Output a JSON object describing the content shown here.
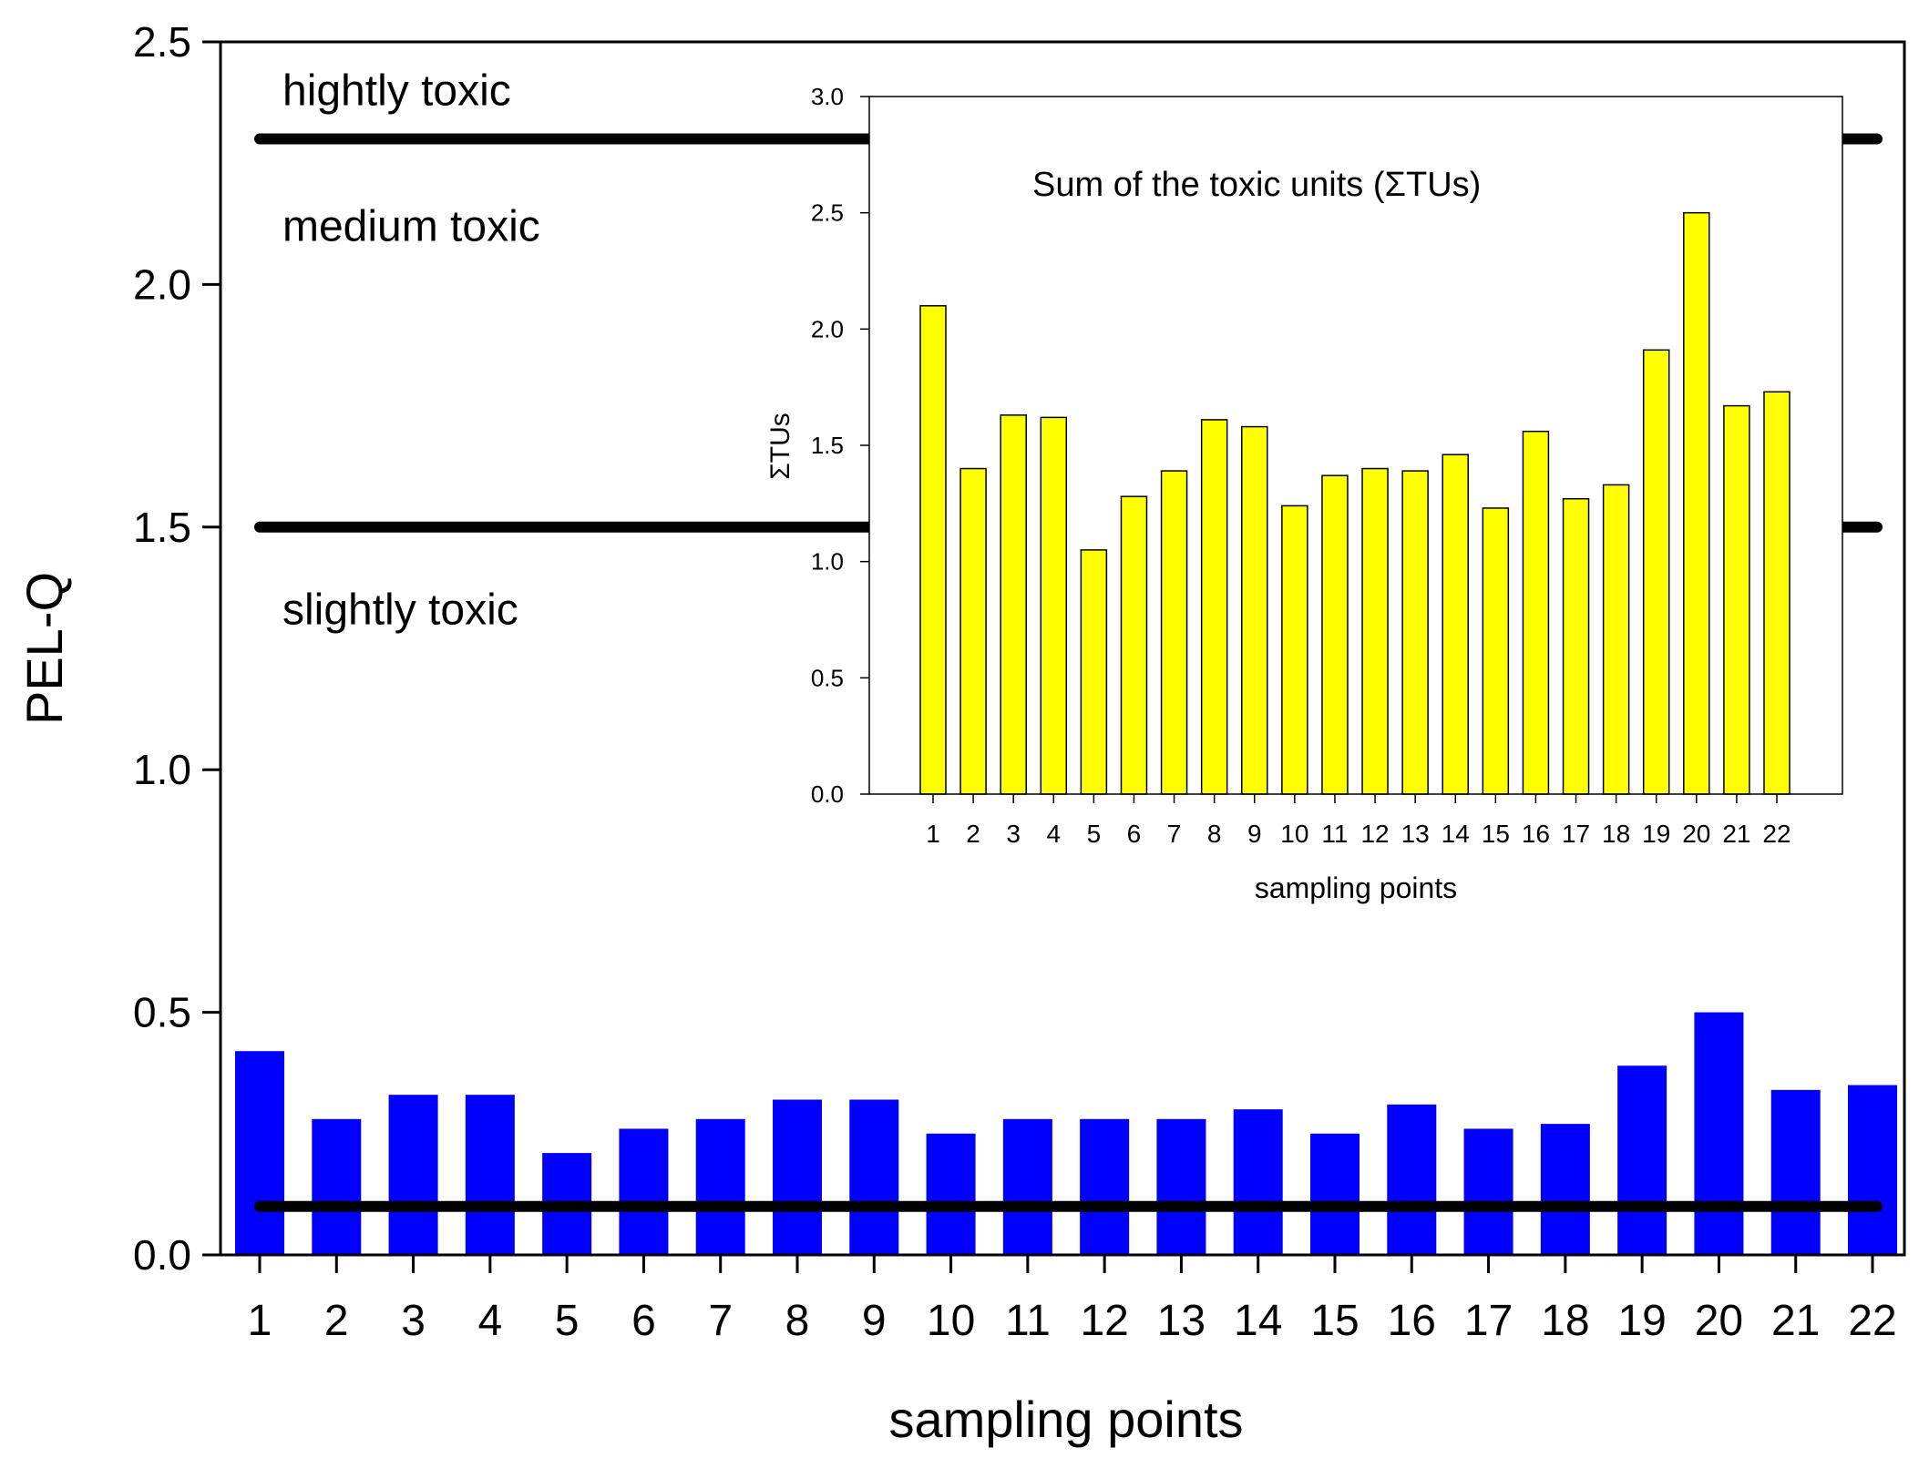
{
  "chart_data": [
    {
      "type": "bar",
      "role": "main",
      "categories": [
        "1",
        "2",
        "3",
        "4",
        "5",
        "6",
        "7",
        "8",
        "9",
        "10",
        "11",
        "12",
        "13",
        "14",
        "15",
        "16",
        "17",
        "18",
        "19",
        "20",
        "21",
        "22"
      ],
      "values": [
        0.42,
        0.28,
        0.33,
        0.33,
        0.21,
        0.26,
        0.28,
        0.32,
        0.32,
        0.25,
        0.28,
        0.28,
        0.28,
        0.3,
        0.25,
        0.31,
        0.26,
        0.27,
        0.39,
        0.5,
        0.34,
        0.35
      ],
      "bar_color": "#0000ff",
      "xlabel": "sampling points",
      "ylabel": "PEL-Q",
      "ylim": [
        0,
        2.5
      ],
      "yticks": [
        "0.0",
        "0.5",
        "1.0",
        "1.5",
        "2.0",
        "2.5"
      ],
      "thresholds": [
        0.1,
        1.5,
        2.3
      ],
      "threshold_color": "#000000",
      "annotations": [
        {
          "text": "hightly toxic",
          "y": 2.4
        },
        {
          "text": "medium toxic",
          "y": 2.12
        },
        {
          "text": "slightly toxic",
          "y": 1.33
        }
      ]
    },
    {
      "type": "bar",
      "role": "inset",
      "title": "Sum of the toxic units (ΣTUs)",
      "categories": [
        "1",
        "2",
        "3",
        "4",
        "5",
        "6",
        "7",
        "8",
        "9",
        "10",
        "11",
        "12",
        "13",
        "14",
        "15",
        "16",
        "17",
        "18",
        "19",
        "20",
        "21",
        "22"
      ],
      "values": [
        2.1,
        1.4,
        1.63,
        1.62,
        1.05,
        1.28,
        1.39,
        1.61,
        1.58,
        1.24,
        1.37,
        1.4,
        1.39,
        1.46,
        1.23,
        1.56,
        1.27,
        1.33,
        1.91,
        2.5,
        1.67,
        1.73
      ],
      "bar_color": "#ffff00",
      "xlabel": "sampling points",
      "ylabel": "ΣTUs",
      "ylim": [
        0,
        3.0
      ],
      "yticks": [
        "0.0",
        "0.5",
        "1.0",
        "1.5",
        "2.0",
        "2.5",
        "3.0"
      ]
    }
  ]
}
